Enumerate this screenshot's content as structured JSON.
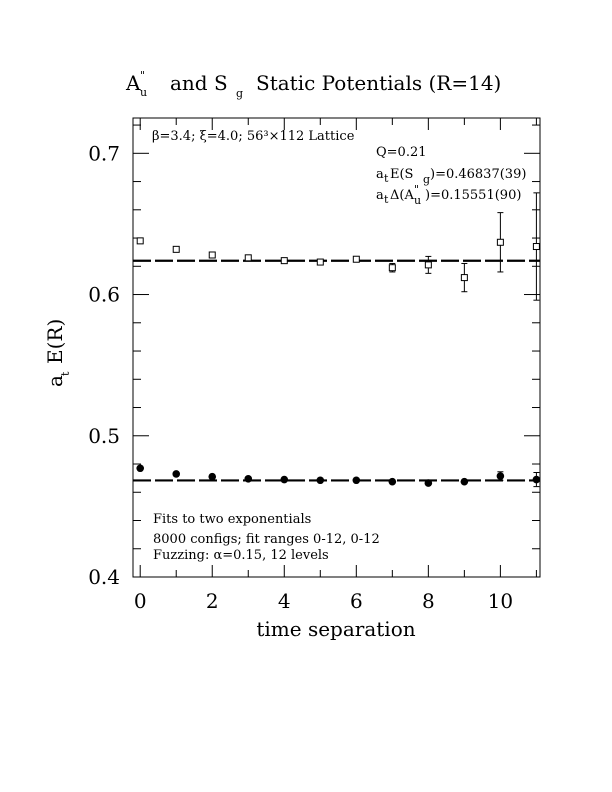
{
  "chart_data": {
    "type": "scatter",
    "title": {
      "p1": "A",
      "p1_sub": "u",
      "p1_sup": "\"",
      "p2": "and S",
      "p2_sub": "g",
      "p3": "Static Potentials (R=14)"
    },
    "xlabel": "time separation",
    "ylabel": {
      "main": "a",
      "sub": "t",
      "rest": "E(R)"
    },
    "xlim": [
      -0.2,
      11.1
    ],
    "ylim": [
      0.4,
      0.725
    ],
    "xticks": [
      "0",
      "2",
      "4",
      "6",
      "8",
      "10"
    ],
    "xtick_values": [
      0,
      2,
      4,
      6,
      8,
      10
    ],
    "yticks": [
      "0.4",
      "0.5",
      "0.6",
      "0.7"
    ],
    "ytick_values": [
      0.4,
      0.5,
      0.6,
      0.7
    ],
    "lattice_label": "β=3.4; ξ=4.0; 56³×112 Lattice",
    "fit_info": {
      "q": "Q=0.21",
      "line2_pre": "a",
      "line2_sub1": "t",
      "line2_mid": "E(S",
      "line2_sub2": "g",
      "line2_post": ")=0.46837(39)",
      "line3_pre": "a",
      "line3_sub1": "t",
      "line3_mid": "Δ(A",
      "line3_sup": "\"",
      "line3_sub2": "u",
      "line3_post": ")=0.15551(90)"
    },
    "notes": [
      "Fits to two exponentials",
      "8000 configs; fit ranges 0-12, 0-12",
      "Fuzzing: α=0.15, 12 levels"
    ],
    "series": [
      {
        "marker": "open-square",
        "x": [
          0,
          1,
          2,
          3,
          4,
          5,
          6,
          7,
          8,
          9,
          10,
          11
        ],
        "y": [
          0.638,
          0.632,
          0.628,
          0.626,
          0.624,
          0.623,
          0.625,
          0.619,
          0.621,
          0.612,
          0.637,
          0.634
        ],
        "err": [
          0.001,
          0.001,
          0.001,
          0.001,
          0.001,
          0.0015,
          0.002,
          0.003,
          0.006,
          0.01,
          0.021,
          0.038
        ],
        "fit": 0.6239
      },
      {
        "marker": "filled-circle",
        "x": [
          0,
          1,
          2,
          3,
          4,
          5,
          6,
          7,
          8,
          9,
          10,
          11
        ],
        "y": [
          0.477,
          0.473,
          0.471,
          0.4695,
          0.469,
          0.4685,
          0.4685,
          0.4675,
          0.4665,
          0.4675,
          0.4715,
          0.469
        ],
        "err": [
          0.001,
          0.001,
          0.001,
          0.001,
          0.001,
          0.001,
          0.001,
          0.001,
          0.001,
          0.0015,
          0.003,
          0.005
        ],
        "fit": 0.46837
      }
    ]
  }
}
